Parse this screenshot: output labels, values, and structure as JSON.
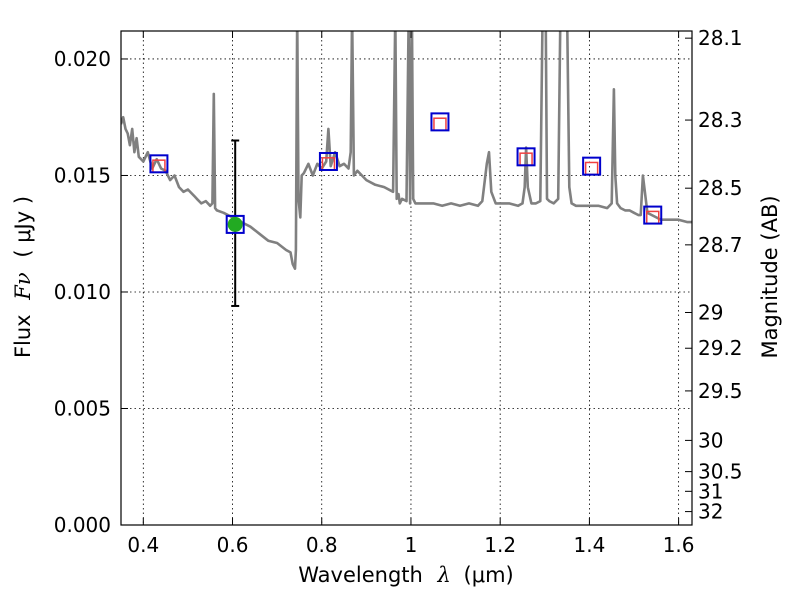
{
  "chart_data": {
    "type": "line",
    "xlabel_text": "Wavelength",
    "xlabel_symbol": "λ",
    "xlabel_unit": "(μm)",
    "ylabel_text": "Flux",
    "ylabel_symbol": "Fν",
    "ylabel_unit": "( μJy )",
    "y2label": "Magnitude (AB)",
    "xlim": [
      0.35,
      1.63
    ],
    "ylim": [
      0.0,
      0.0212
    ],
    "grid": true,
    "x_ticks": [
      {
        "value": 0.4,
        "label": "0.4"
      },
      {
        "value": 0.6,
        "label": "0.6"
      },
      {
        "value": 0.8,
        "label": "0.8"
      },
      {
        "value": 1.0,
        "label": "1"
      },
      {
        "value": 1.2,
        "label": "1.2"
      },
      {
        "value": 1.4,
        "label": "1.4"
      },
      {
        "value": 1.6,
        "label": "1.6"
      }
    ],
    "y_ticks": [
      {
        "value": 0.0,
        "label": "0.000"
      },
      {
        "value": 0.005,
        "label": "0.005"
      },
      {
        "value": 0.01,
        "label": "0.010"
      },
      {
        "value": 0.015,
        "label": "0.015"
      },
      {
        "value": 0.02,
        "label": "0.020"
      }
    ],
    "y2_ticks": [
      {
        "value": 28.1,
        "label": "28.1"
      },
      {
        "value": 28.3,
        "label": "28.3"
      },
      {
        "value": 28.5,
        "label": "28.5"
      },
      {
        "value": 28.7,
        "label": "28.7"
      },
      {
        "value": 29.0,
        "label": "29"
      },
      {
        "value": 29.2,
        "label": "29.2"
      },
      {
        "value": 29.5,
        "label": "29.5"
      },
      {
        "value": 30.0,
        "label": "30"
      },
      {
        "value": 30.5,
        "label": "30.5"
      },
      {
        "value": 31.0,
        "label": "31"
      },
      {
        "value": 32.0,
        "label": "32"
      }
    ],
    "model_spectrum": {
      "color": "#808080",
      "x": [
        0.35,
        0.355,
        0.36,
        0.365,
        0.37,
        0.375,
        0.38,
        0.385,
        0.39,
        0.4,
        0.41,
        0.42,
        0.43,
        0.44,
        0.45,
        0.46,
        0.47,
        0.48,
        0.49,
        0.5,
        0.51,
        0.515,
        0.52,
        0.53,
        0.54,
        0.55,
        0.555,
        0.558,
        0.561,
        0.565,
        0.58,
        0.6,
        0.62,
        0.64,
        0.66,
        0.68,
        0.7,
        0.72,
        0.73,
        0.735,
        0.74,
        0.742,
        0.745,
        0.748,
        0.752,
        0.755,
        0.76,
        0.77,
        0.78,
        0.79,
        0.8,
        0.81,
        0.815,
        0.82,
        0.83,
        0.84,
        0.85,
        0.86,
        0.865,
        0.868,
        0.872,
        0.88,
        0.89,
        0.9,
        0.92,
        0.94,
        0.96,
        0.965,
        0.968,
        0.972,
        0.975,
        0.98,
        0.99,
        0.995,
        0.998,
        1.002,
        1.005,
        1.01,
        1.03,
        1.05,
        1.07,
        1.09,
        1.11,
        1.13,
        1.15,
        1.16,
        1.17,
        1.175,
        1.18,
        1.19,
        1.2,
        1.22,
        1.24,
        1.25,
        1.255,
        1.258,
        1.262,
        1.27,
        1.28,
        1.29,
        1.295,
        1.298,
        1.302,
        1.305,
        1.31,
        1.32,
        1.33,
        1.335,
        1.34,
        1.35,
        1.355,
        1.36,
        1.37,
        1.38,
        1.4,
        1.42,
        1.44,
        1.45,
        1.455,
        1.458,
        1.462,
        1.47,
        1.48,
        1.49,
        1.5,
        1.51,
        1.515,
        1.52,
        1.53,
        1.54,
        1.55,
        1.56,
        1.58,
        1.6,
        1.62,
        1.63
      ],
      "y": [
        0.0172,
        0.0175,
        0.017,
        0.0168,
        0.0163,
        0.017,
        0.016,
        0.0166,
        0.0158,
        0.0156,
        0.016,
        0.0153,
        0.0157,
        0.0153,
        0.0152,
        0.0148,
        0.015,
        0.0145,
        0.0143,
        0.0144,
        0.0142,
        0.0141,
        0.014,
        0.0138,
        0.0139,
        0.0137,
        0.0138,
        0.0185,
        0.0136,
        0.0135,
        0.0134,
        0.0132,
        0.013,
        0.0128,
        0.0125,
        0.0122,
        0.0121,
        0.0118,
        0.0117,
        0.0112,
        0.011,
        0.0118,
        0.022,
        0.014,
        0.0132,
        0.015,
        0.0151,
        0.0155,
        0.015,
        0.0155,
        0.0153,
        0.0156,
        0.017,
        0.0154,
        0.016,
        0.0154,
        0.0155,
        0.0153,
        0.016,
        0.022,
        0.015,
        0.0152,
        0.015,
        0.0148,
        0.0146,
        0.0145,
        0.0143,
        0.022,
        0.014,
        0.0142,
        0.0138,
        0.014,
        0.0139,
        0.022,
        0.0138,
        0.022,
        0.014,
        0.0138,
        0.0138,
        0.0138,
        0.0137,
        0.0138,
        0.0137,
        0.0138,
        0.0137,
        0.0139,
        0.0155,
        0.016,
        0.0143,
        0.0138,
        0.0138,
        0.0138,
        0.0137,
        0.0138,
        0.0145,
        0.0162,
        0.0145,
        0.0138,
        0.0138,
        0.0139,
        0.022,
        0.022,
        0.022,
        0.014,
        0.0139,
        0.0138,
        0.014,
        0.022,
        0.022,
        0.022,
        0.0145,
        0.0138,
        0.0137,
        0.0137,
        0.0137,
        0.0137,
        0.0136,
        0.0138,
        0.0187,
        0.015,
        0.0138,
        0.0136,
        0.0135,
        0.0135,
        0.0134,
        0.0133,
        0.0133,
        0.015,
        0.0134,
        0.0133,
        0.0132,
        0.0131,
        0.0131,
        0.0131,
        0.013,
        0.013
      ]
    },
    "model_photometry": {
      "color": "#f04040",
      "x": [
        0.435,
        0.815,
        1.065,
        1.258,
        1.405,
        1.542
      ],
      "y": [
        0.0154,
        0.0155,
        0.0172,
        0.0157,
        0.0153,
        0.0132
      ]
    },
    "observed_photometry": {
      "color": "#0000cc",
      "x": [
        0.435,
        0.606,
        0.815,
        1.065,
        1.258,
        1.405,
        1.542
      ],
      "y": [
        0.0155,
        0.0129,
        0.0156,
        0.0173,
        0.0158,
        0.0154,
        0.0133
      ]
    },
    "detections": {
      "color": "#22aa22",
      "x": [
        0.606
      ],
      "y": [
        0.0129
      ],
      "err_low": [
        0.0094
      ],
      "err_high": [
        0.0165
      ]
    }
  }
}
